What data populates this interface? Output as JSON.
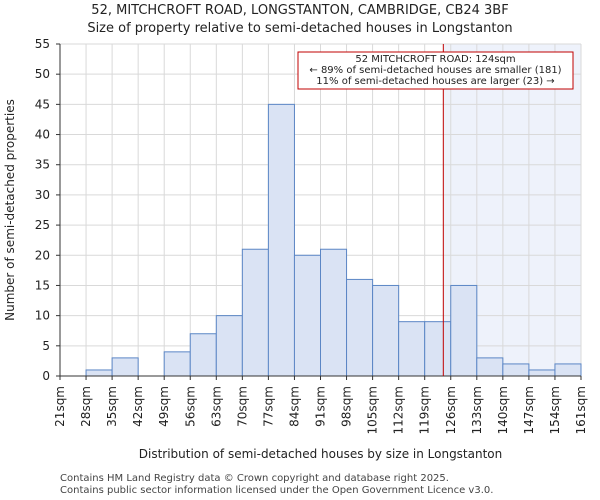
{
  "header": {
    "title_line1": "52, MITCHCROFT ROAD, LONGSTANTON, CAMBRIDGE, CB24 3BF",
    "title_line2": "Size of property relative to semi-detached houses in Longstanton"
  },
  "footer": {
    "line1": "Contains HM Land Registry data © Crown copyright and database right 2025.",
    "line2": "Contains public sector information licensed under the Open Government Licence v3.0."
  },
  "chart_data": {
    "type": "bar",
    "title": "Size of property relative to semi-detached houses in Longstanton",
    "xlabel": "Distribution of semi-detached houses by size in Longstanton",
    "ylabel": "Number of semi-detached properties",
    "ylim": [
      0,
      55
    ],
    "yticks": [
      0,
      5,
      10,
      15,
      20,
      25,
      30,
      35,
      40,
      45,
      50,
      55
    ],
    "bin_edges": [
      21,
      28,
      35,
      42,
      49,
      56,
      63,
      70,
      77,
      84,
      91,
      98,
      105,
      112,
      119,
      126,
      133,
      140,
      147,
      154,
      161
    ],
    "tick_labels": [
      "21sqm",
      "28sqm",
      "35sqm",
      "42sqm",
      "49sqm",
      "56sqm",
      "63sqm",
      "70sqm",
      "77sqm",
      "84sqm",
      "91sqm",
      "98sqm",
      "105sqm",
      "112sqm",
      "119sqm",
      "126sqm",
      "133sqm",
      "140sqm",
      "147sqm",
      "154sqm",
      "161sqm"
    ],
    "values": [
      0,
      1,
      3,
      0,
      4,
      7,
      10,
      21,
      45,
      20,
      21,
      16,
      15,
      9,
      9,
      15,
      3,
      2,
      1,
      2
    ],
    "marker_value": 124,
    "annotation": {
      "line1": "52 MITCHCROFT ROAD: 124sqm",
      "line2": "← 89% of semi-detached houses are smaller (181)",
      "line3": "11% of semi-detached houses are larger (23) →"
    },
    "colors": {
      "bar_fill": "#dae3f4",
      "bar_stroke": "#5b86c5",
      "marker": "#c00000",
      "highlight": "#eef2fb",
      "grid": "#d9d9d9"
    }
  }
}
